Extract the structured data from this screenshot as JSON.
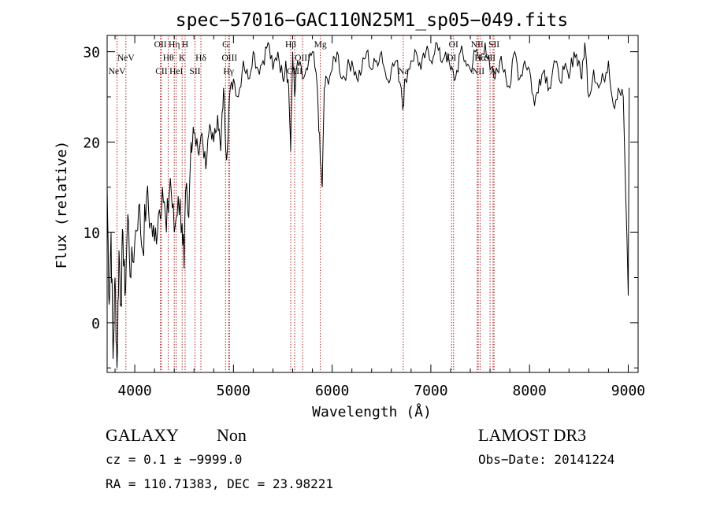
{
  "chart_data": {
    "type": "line",
    "title": "spec−57016−GAC110N25M1_sp05−049.fits",
    "xlabel": "Wavelength (Å)",
    "ylabel": "Flux (relative)",
    "xlim": [
      3720,
      9100
    ],
    "ylim": [
      -5.5,
      31.8
    ],
    "x_ticks": [
      {
        "value": 4000,
        "label": "4000"
      },
      {
        "value": 5000,
        "label": "5000"
      },
      {
        "value": 6000,
        "label": "6000"
      },
      {
        "value": 7000,
        "label": "7000"
      },
      {
        "value": 8000,
        "label": "8000"
      },
      {
        "value": 9000,
        "label": "9000"
      }
    ],
    "y_ticks": [
      {
        "value": 0,
        "label": "0"
      },
      {
        "value": 10,
        "label": "10"
      },
      {
        "value": 20,
        "label": "20"
      },
      {
        "value": 30,
        "label": "30"
      }
    ],
    "series": [
      {
        "name": "flux",
        "x": [
          3720,
          3740,
          3760,
          3780,
          3800,
          3820,
          3840,
          3860,
          3880,
          3900,
          3930,
          3960,
          4000,
          4040,
          4080,
          4120,
          4160,
          4200,
          4240,
          4280,
          4320,
          4360,
          4400,
          4440,
          4480,
          4500,
          4520,
          4540,
          4570,
          4600,
          4640,
          4680,
          4720,
          4760,
          4800,
          4840,
          4870,
          4900,
          4930,
          4960,
          5000,
          5050,
          5100,
          5150,
          5200,
          5250,
          5300,
          5350,
          5400,
          5450,
          5500,
          5530,
          5560,
          5580,
          5600,
          5620,
          5650,
          5700,
          5750,
          5800,
          5850,
          5880,
          5900,
          5920,
          5950,
          6000,
          6050,
          6100,
          6150,
          6200,
          6250,
          6300,
          6350,
          6400,
          6450,
          6500,
          6550,
          6600,
          6650,
          6700,
          6720,
          6740,
          6800,
          6850,
          6900,
          6950,
          7000,
          7050,
          7100,
          7150,
          7200,
          7250,
          7300,
          7350,
          7400,
          7450,
          7500,
          7550,
          7600,
          7650,
          7700,
          7750,
          7800,
          7850,
          7900,
          7950,
          8000,
          8050,
          8100,
          8150,
          8200,
          8250,
          8300,
          8350,
          8400,
          8450,
          8500,
          8530,
          8560,
          8600,
          8650,
          8700,
          8750,
          8800,
          8850,
          8900,
          8950,
          9000,
          9010
        ],
        "values": [
          15,
          2,
          10,
          -4,
          5,
          -5,
          8,
          2,
          10,
          3,
          12,
          5,
          9,
          13,
          8,
          14,
          11,
          9,
          12,
          15,
          10,
          16,
          10,
          14,
          11,
          6,
          15,
          12,
          20,
          21,
          19,
          21,
          17,
          22,
          20,
          23,
          19,
          26,
          18,
          25,
          27,
          25,
          29,
          27,
          30,
          28,
          29,
          31,
          28,
          30,
          27,
          29,
          26,
          19,
          30,
          25,
          29,
          27,
          28,
          30,
          26,
          18,
          15,
          26,
          27,
          28,
          30,
          27,
          28,
          29,
          27,
          28,
          30,
          28,
          29,
          30,
          27,
          28,
          29,
          26,
          24,
          27,
          29,
          30,
          28,
          30,
          29,
          31,
          29,
          30,
          28,
          27,
          30,
          29,
          28,
          30,
          29,
          31,
          28,
          27,
          29,
          28,
          26,
          30,
          27,
          29,
          28,
          24,
          27,
          28,
          26,
          29,
          27,
          28,
          27,
          30,
          29,
          27,
          31,
          25,
          28,
          26,
          27,
          29,
          24,
          26,
          25,
          3,
          26
        ]
      }
    ],
    "lines": [
      {
        "wave": 3820,
        "label": "NeV",
        "row": 2
      },
      {
        "wave": 3910,
        "label": "NeV",
        "row": 1
      },
      {
        "wave": 4260,
        "label": "OII",
        "row": 0
      },
      {
        "wave": 4270,
        "label": "CII",
        "row": 2
      },
      {
        "wave": 4340,
        "label": "Hθ",
        "row": 1
      },
      {
        "wave": 4400,
        "label": "Hη",
        "row": 0
      },
      {
        "wave": 4420,
        "label": "HeI",
        "row": 2
      },
      {
        "wave": 4510,
        "label": "H",
        "row": 0
      },
      {
        "wave": 4480,
        "label": "K",
        "row": 1
      },
      {
        "wave": 4610,
        "label": "SII",
        "row": 2
      },
      {
        "wave": 4670,
        "label": "Hδ",
        "row": 1
      },
      {
        "wave": 4920,
        "label": "G",
        "row": 0
      },
      {
        "wave": 4960,
        "label": "OIII",
        "row": 1
      },
      {
        "wave": 4950,
        "label": "Hγ",
        "row": 2
      },
      {
        "wave": 5580,
        "label": "Hβ",
        "row": 0
      },
      {
        "wave": 5620,
        "label": "OIII",
        "row": 2
      },
      {
        "wave": 5700,
        "label": "OIII",
        "row": 1
      },
      {
        "wave": 5880,
        "label": "Mg",
        "row": 0
      },
      {
        "wave": 6720,
        "label": "Na",
        "row": 2
      },
      {
        "wave": 7230,
        "label": "OI",
        "row": 0
      },
      {
        "wave": 7210,
        "label": "OI",
        "row": 1
      },
      {
        "wave": 7470,
        "label": "NII",
        "row": 0
      },
      {
        "wave": 7500,
        "label": "Hα",
        "row": 1
      },
      {
        "wave": 7480,
        "label": "NII",
        "row": 2
      },
      {
        "wave": 7640,
        "label": "SII",
        "row": 0
      },
      {
        "wave": 7600,
        "label": "SII",
        "row": 1
      },
      {
        "wave": 7630,
        "label": "A",
        "row": 2
      }
    ]
  },
  "footer": {
    "class": "GALAXY",
    "subclass": "Non",
    "survey": "LAMOST DR3",
    "cz": "cz = 0.1 ± −9999.0",
    "obs_date": "Obs−Date: 20141224",
    "radec": "RA = 110.71383, DEC =  23.98221"
  }
}
